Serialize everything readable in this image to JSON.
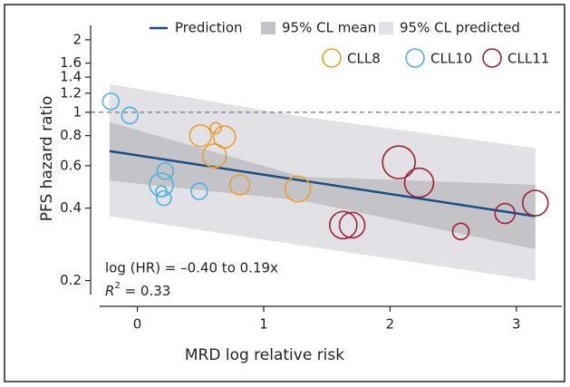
{
  "chart_data": {
    "type": "scatter",
    "x_label": "MRD log relative risk",
    "y_label": "PFS hazard ratio",
    "xlim": [
      -0.37,
      3.36
    ],
    "xticks": [
      0,
      1,
      2,
      3
    ],
    "ylim": [
      0.175,
      2.57
    ],
    "yticks": [
      0.2,
      0.4,
      0.6,
      0.8,
      1,
      1.2,
      1.4,
      1.6,
      2
    ],
    "log_y": true,
    "reference_line": 1,
    "legend": "top-right",
    "bands": [
      {
        "name": "95% CL predicted",
        "color": "#e2e2e6",
        "x": [
          -0.22,
          1.3,
          3.15
        ],
        "lower": [
          0.37,
          0.28,
          0.2
        ],
        "upper": [
          1.31,
          0.96,
          0.71
        ]
      },
      {
        "name": "95% CL mean",
        "color": "#c3c3c8",
        "x": [
          -0.22,
          1.3,
          3.15
        ],
        "lower": [
          0.52,
          0.43,
          0.27
        ],
        "upper": [
          0.91,
          0.54,
          0.5
        ]
      }
    ],
    "line": {
      "name": "Prediction",
      "color": "#1b4e82",
      "x": [
        -0.22,
        3.15
      ],
      "values": [
        0.69,
        0.37
      ]
    },
    "series": [
      {
        "name": "CLL8",
        "color": "#e9a02f",
        "x": [
          0.5,
          0.62,
          0.69,
          0.61,
          0.81,
          1.27
        ],
        "values": [
          0.8,
          0.86,
          0.79,
          0.66,
          0.5,
          0.48
        ],
        "sizes": [
          12,
          6,
          12,
          13,
          11,
          14
        ]
      },
      {
        "name": "CLL10",
        "color": "#4db3e0",
        "x": [
          -0.21,
          -0.06,
          0.22,
          0.19,
          0.19,
          0.21,
          0.49
        ],
        "values": [
          1.11,
          0.97,
          0.57,
          0.5,
          0.47,
          0.44,
          0.47
        ],
        "sizes": [
          9,
          9,
          9,
          13,
          6,
          8,
          9
        ]
      },
      {
        "name": "CLL11",
        "color": "#a21f3b",
        "x": [
          2.07,
          2.23,
          1.63,
          1.7,
          2.56,
          2.91,
          3.15
        ],
        "values": [
          0.62,
          0.51,
          0.34,
          0.34,
          0.32,
          0.38,
          0.42
        ],
        "sizes": [
          18,
          16,
          15,
          14,
          9,
          11,
          14
        ]
      }
    ],
    "annotations": {
      "equation": "log (HR) = –0.40 to 0.19x",
      "r_symbol": "R",
      "r_sup": "2",
      "r_text": " = 0.33"
    }
  }
}
